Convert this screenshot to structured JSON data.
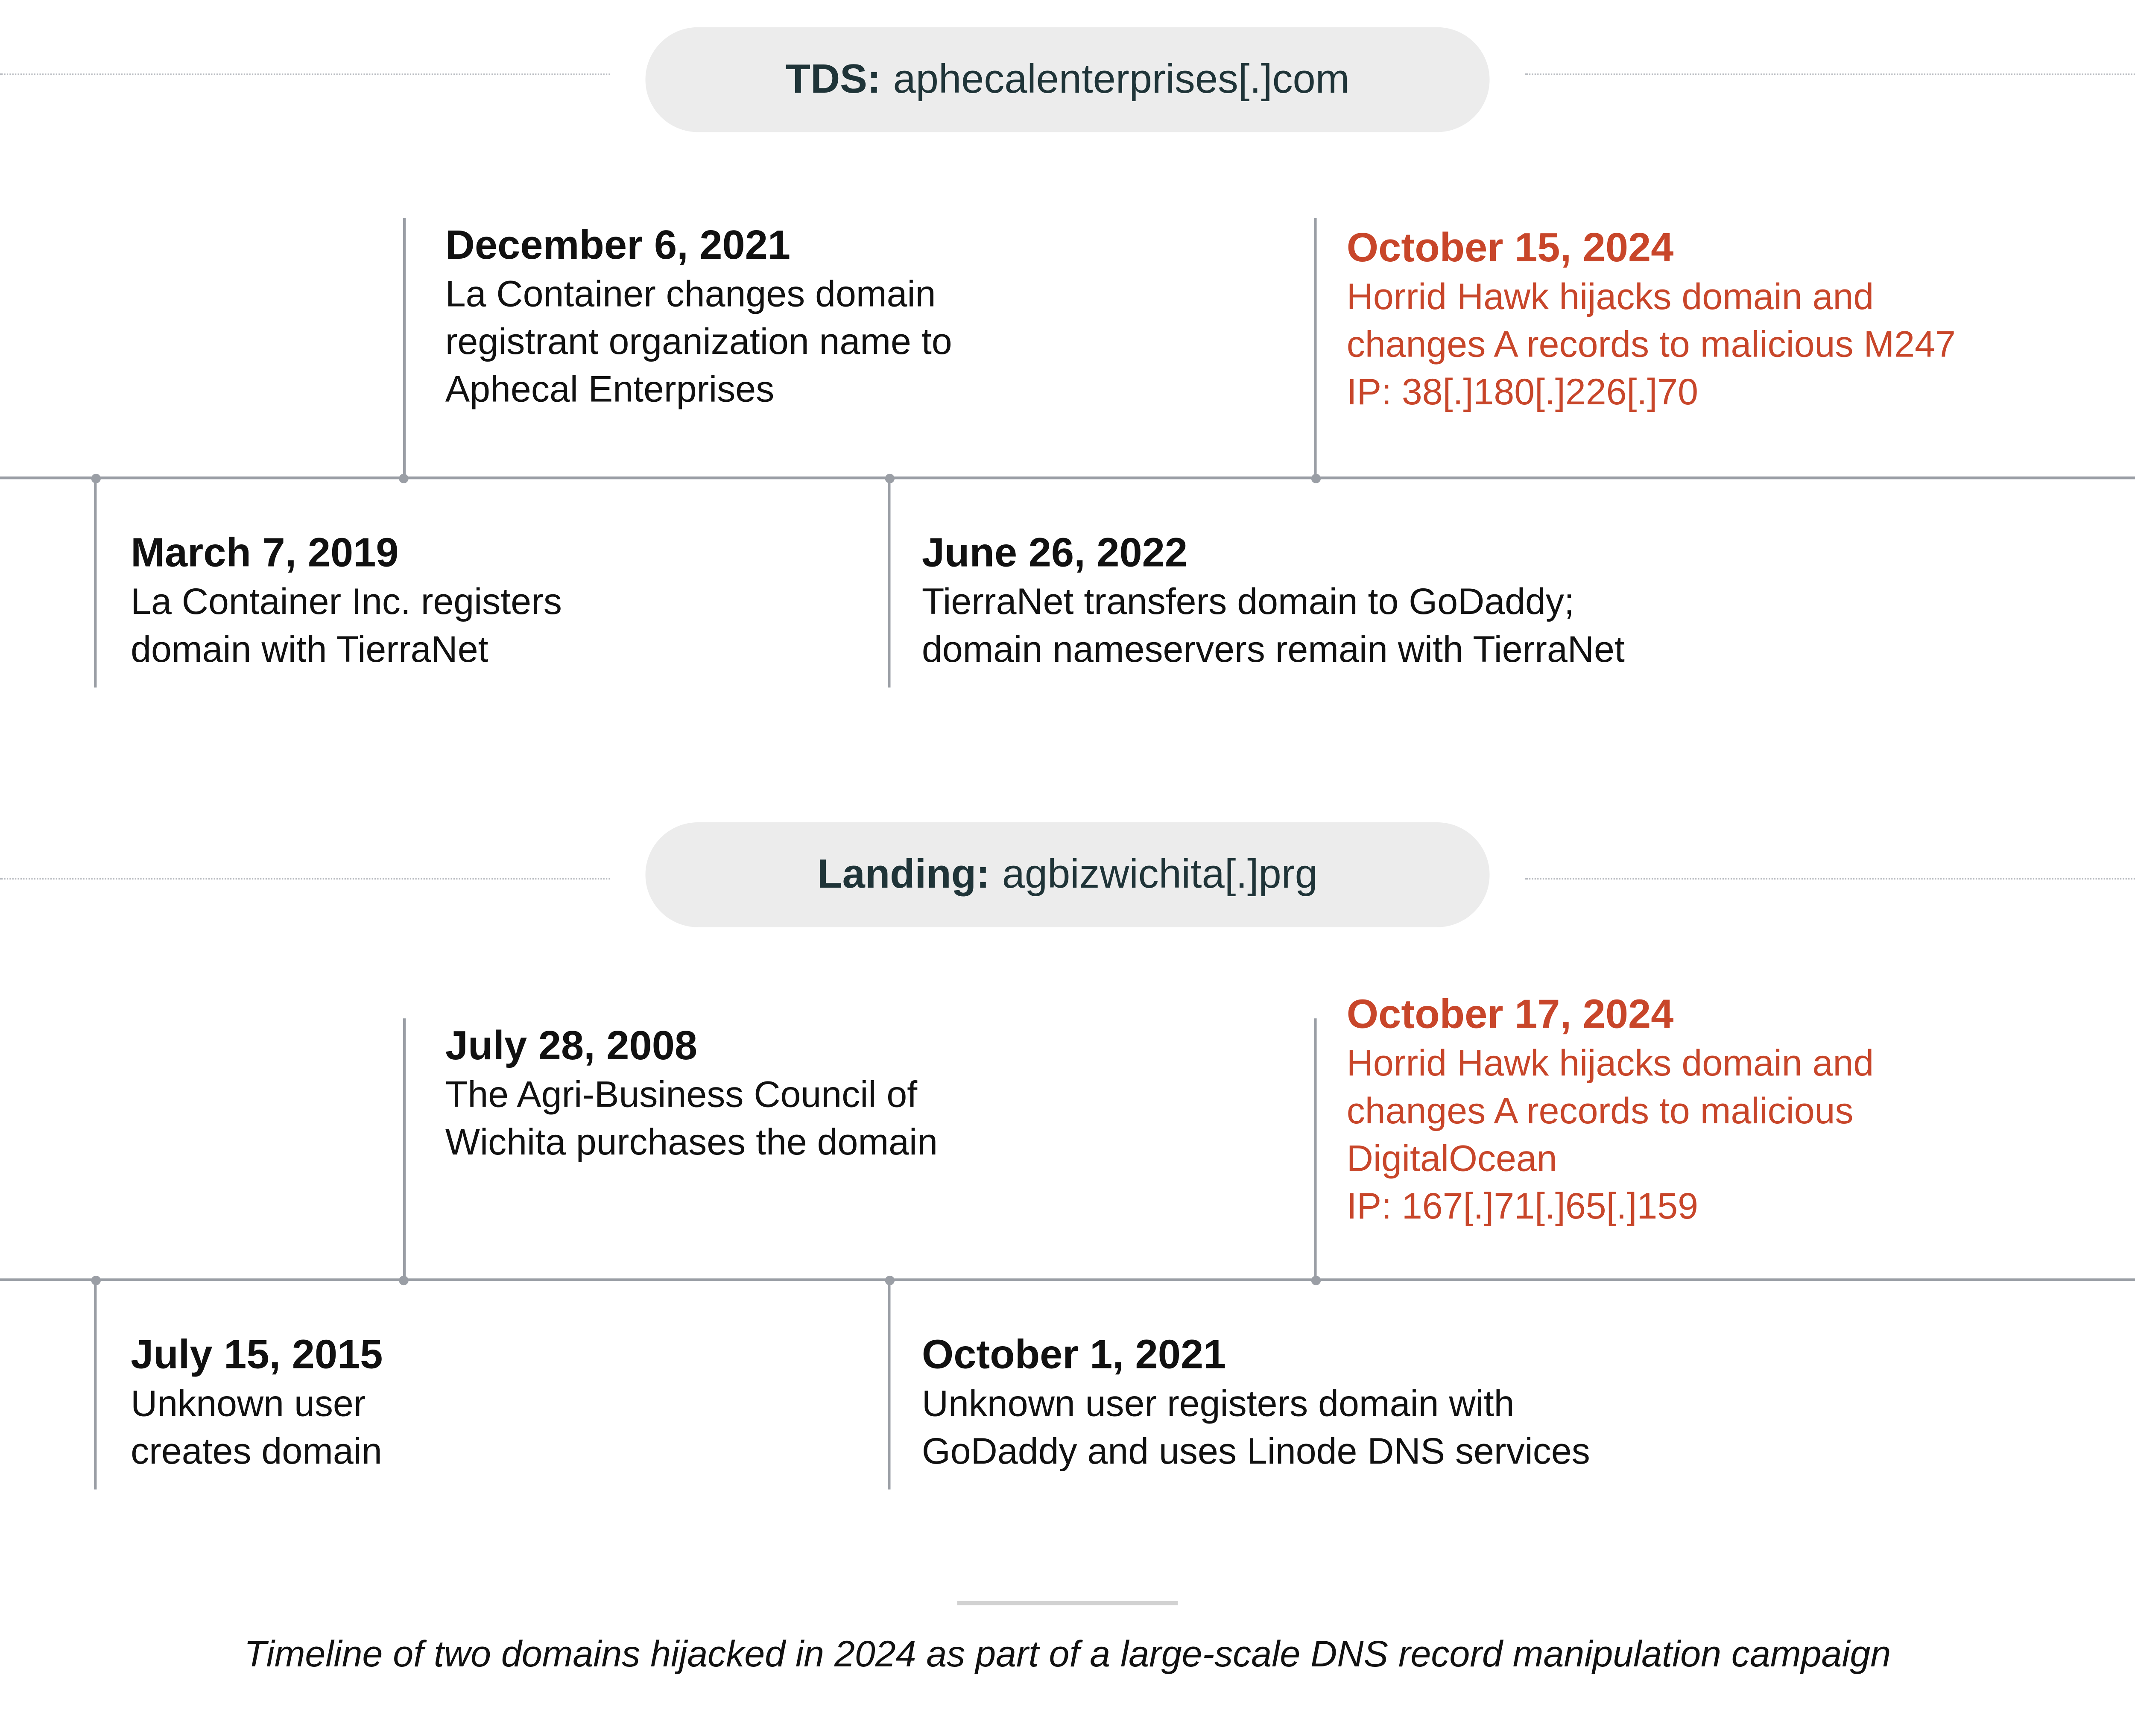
{
  "colors": {
    "accent": "#c8462a",
    "text": "#111111",
    "pill_bg": "#ececec",
    "pill_text": "#1f3438",
    "timeline": "#9a9ea5"
  },
  "sections": [
    {
      "label": "TDS:",
      "domain": "aphecalenterprises[.]com",
      "events": [
        {
          "date": "March 7, 2019",
          "lines": [
            "La Container Inc. registers",
            "domain with TierraNet"
          ],
          "highlight": false
        },
        {
          "date": "December 6, 2021",
          "lines": [
            "La Container changes domain",
            "registrant organization name to",
            "Aphecal Enterprises"
          ],
          "highlight": false
        },
        {
          "date": "June 26, 2022",
          "lines": [
            "TierraNet transfers domain to GoDaddy;",
            "domain nameservers remain with TierraNet"
          ],
          "highlight": false
        },
        {
          "date": "October 15, 2024",
          "lines": [
            "Horrid Hawk hijacks domain and",
            "changes A records to malicious M247",
            "IP: 38[.]180[.]226[.]70"
          ],
          "highlight": true
        }
      ]
    },
    {
      "label": "Landing:",
      "domain": "agbizwichita[.]prg",
      "events": [
        {
          "date": "July 15, 2015",
          "lines": [
            "Unknown user",
            "creates domain"
          ],
          "highlight": false
        },
        {
          "date": "July 28, 2008",
          "lines": [
            "The Agri-Business Council of",
            "Wichita purchases the domain"
          ],
          "highlight": false
        },
        {
          "date": "October 1, 2021",
          "lines": [
            "Unknown user registers domain with",
            "GoDaddy and uses Linode DNS services"
          ],
          "highlight": false
        },
        {
          "date": "October 17, 2024",
          "lines": [
            "Horrid Hawk hijacks domain and",
            "changes A records to malicious",
            "DigitalOcean",
            "IP: 167[.]71[.]65[.]159"
          ],
          "highlight": true
        }
      ]
    }
  ],
  "caption": "Timeline of two domains hijacked in 2024 as part of a large-scale DNS record manipulation campaign"
}
